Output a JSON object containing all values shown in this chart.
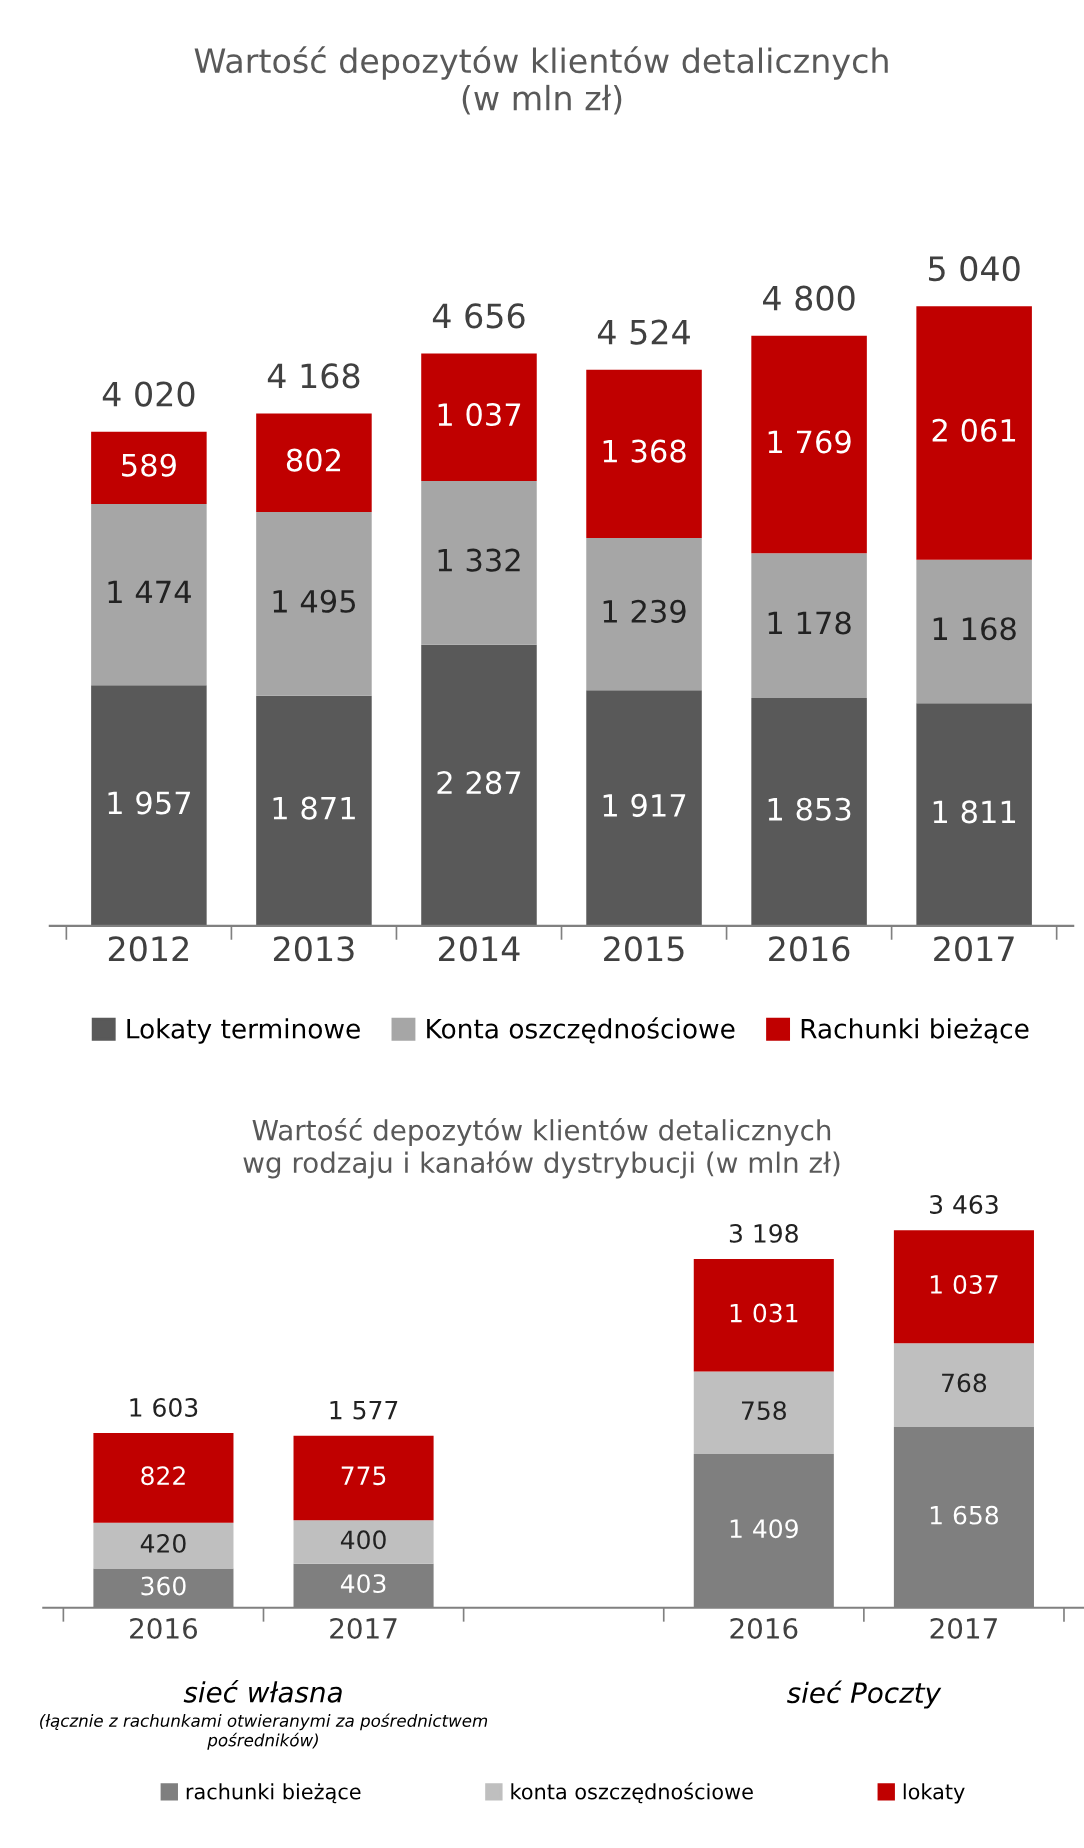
{
  "chart_data": [
    {
      "type": "bar",
      "stacked": true,
      "title": "Wartość depozytów klientów detalicznych\n(w mln zł)",
      "categories": [
        "2012",
        "2013",
        "2014",
        "2015",
        "2016",
        "2017"
      ],
      "legend": "bottom",
      "grid": false,
      "series": [
        {
          "name": "Lokaty terminowe",
          "color": "#595959",
          "values": [
            1957,
            1871,
            2287,
            1917,
            1853,
            1811
          ],
          "value_labels": [
            "1 957",
            "1 871",
            "2 287",
            "1 917",
            "1 853",
            "1 811"
          ]
        },
        {
          "name": "Konta oszczędnościowe",
          "color": "#a6a6a6",
          "values": [
            1474,
            1495,
            1332,
            1239,
            1178,
            1168
          ],
          "value_labels": [
            "1 474",
            "1 495",
            "1 332",
            "1 239",
            "1 178",
            "1 168"
          ]
        },
        {
          "name": "Rachunki bieżące",
          "color": "#c00000",
          "values": [
            589,
            802,
            1037,
            1368,
            1769,
            2061
          ],
          "value_labels": [
            "589",
            "802",
            "1 037",
            "1 368",
            "1 769",
            "2 061"
          ]
        }
      ],
      "totals": [
        "4 020",
        "4 168",
        "4 656",
        "4 524",
        "4 800",
        "5 040"
      ]
    },
    {
      "type": "bar",
      "stacked": true,
      "title": "Wartość depozytów klientów detalicznych\nwg rodzaju i kanałów dystrybucji (w mln zł)",
      "categories": [
        "2016",
        "2017",
        null,
        "2016",
        "2017"
      ],
      "legend": "bottom",
      "grid": false,
      "series": [
        {
          "name": "rachunki bieżące",
          "color": "#7f7f7f",
          "values": [
            360,
            403,
            null,
            1409,
            1658
          ],
          "value_labels": [
            "360",
            "403",
            null,
            "1 409",
            "1 658"
          ]
        },
        {
          "name": "konta oszczędnościowe",
          "color": "#bfbfbf",
          "values": [
            420,
            400,
            null,
            758,
            768
          ],
          "value_labels": [
            "420",
            "400",
            null,
            "758",
            "768"
          ]
        },
        {
          "name": "lokaty",
          "color": "#c00000",
          "values": [
            822,
            775,
            null,
            1031,
            1037
          ],
          "value_labels": [
            "822",
            "775",
            null,
            "1 031",
            "1 037"
          ]
        }
      ],
      "totals": [
        "1 603",
        "1 577",
        null,
        "3 198",
        "3 463"
      ],
      "annotations": [
        "sieć własna",
        "(łącznie z rachunkami otwieranymi za pośrednictwem pośredników)",
        "sieć Poczty"
      ]
    }
  ]
}
